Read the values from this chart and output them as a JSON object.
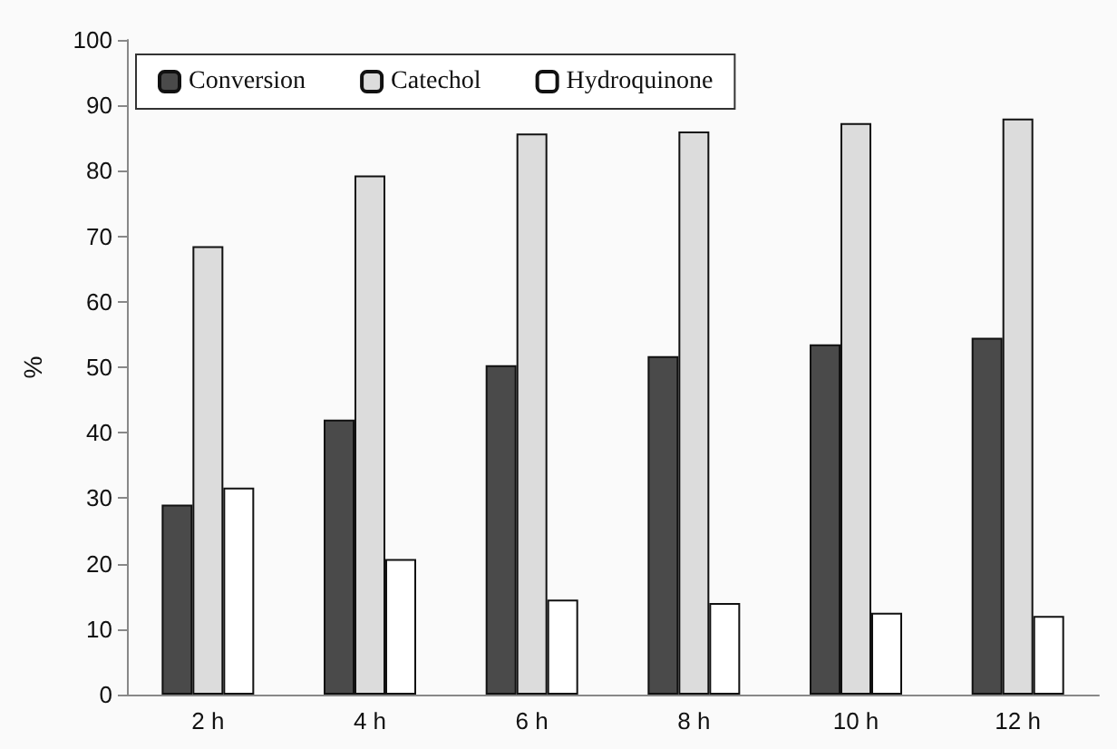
{
  "chart_data": {
    "type": "bar",
    "ylabel": "%",
    "categories": [
      "2 h",
      "4 h",
      "6 h",
      "8 h",
      "10 h",
      "12 h"
    ],
    "series": [
      {
        "name": "Conversion",
        "color": "#4a4a4a",
        "values": [
          29,
          42,
          50.3,
          51.7,
          53.5,
          54.5
        ]
      },
      {
        "name": "Catechol",
        "color": "#dcdcdc",
        "values": [
          68.5,
          79.3,
          85.7,
          86,
          87.3,
          88
        ]
      },
      {
        "name": "Hydroquinone",
        "color": "#ffffff",
        "values": [
          31.6,
          20.7,
          14.5,
          14,
          12.5,
          12
        ]
      }
    ],
    "ylim": [
      0,
      100
    ],
    "yticks": [
      0,
      10,
      20,
      30,
      40,
      50,
      60,
      70,
      80,
      90,
      100
    ],
    "grid": false,
    "legend": "top left"
  }
}
